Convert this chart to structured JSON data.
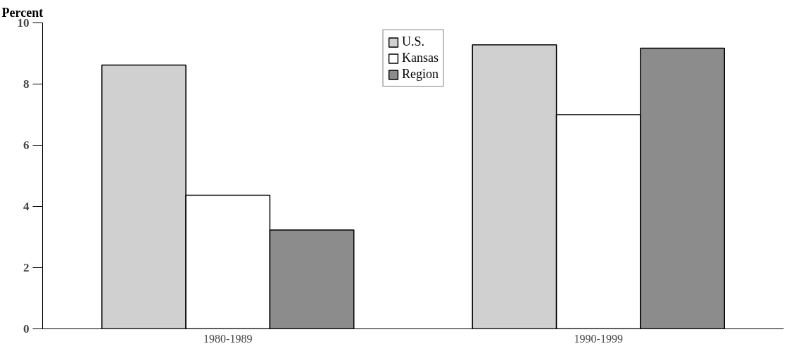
{
  "chart_data": {
    "type": "bar",
    "ylabel": "Percent",
    "categories": [
      "1980-1989",
      "1990-1999"
    ],
    "series": [
      {
        "name": "U.S.",
        "color": "#d0d0d0",
        "values": [
          8.62,
          9.28
        ]
      },
      {
        "name": "Kansas",
        "color": "#ffffff",
        "values": [
          4.37,
          7.0
        ]
      },
      {
        "name": "Region",
        "color": "#8c8c8c",
        "values": [
          3.23,
          9.17
        ]
      }
    ],
    "ylim": [
      0,
      10
    ],
    "yticks": [
      0,
      2,
      4,
      6,
      8,
      10
    ],
    "grid": false,
    "legend": "top"
  }
}
